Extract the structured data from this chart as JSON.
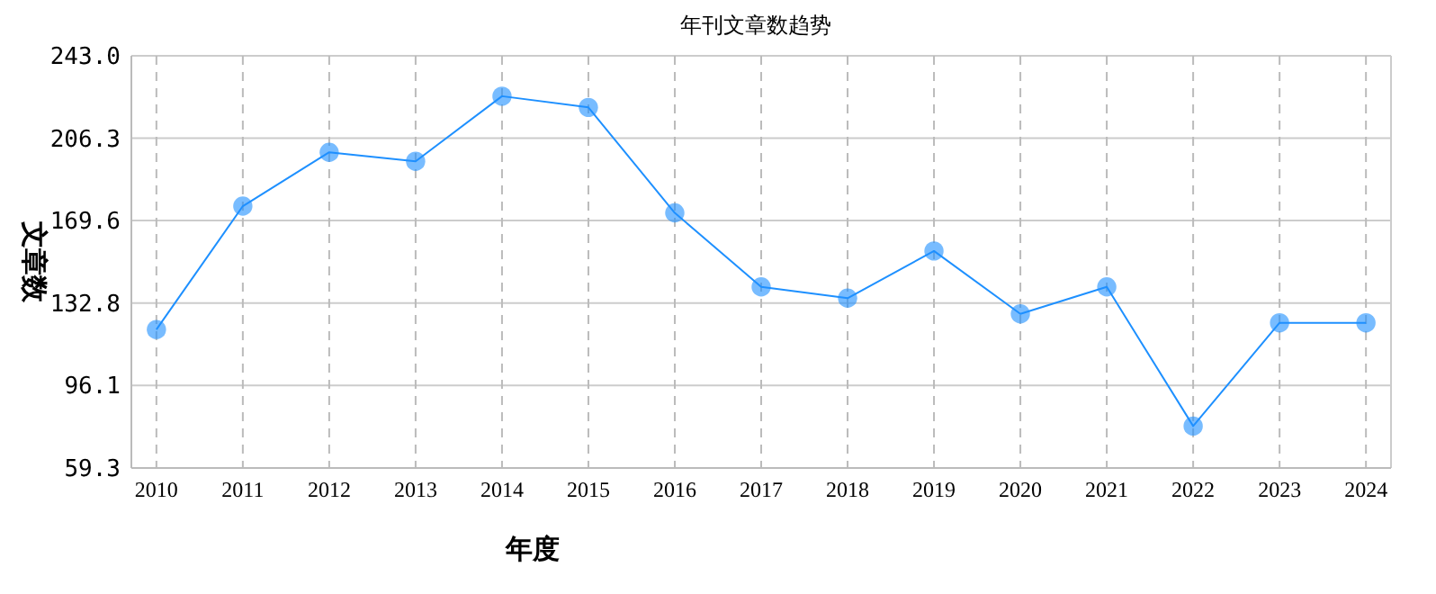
{
  "chart_data": {
    "type": "line",
    "title": "年刊文章数趋势",
    "xlabel": "年度",
    "ylabel": "文章数",
    "categories": [
      "2010",
      "2011",
      "2012",
      "2013",
      "2014",
      "2015",
      "2016",
      "2017",
      "2018",
      "2019",
      "2020",
      "2021",
      "2022",
      "2023",
      "2024"
    ],
    "series": [
      {
        "color": "#1e90ff",
        "values": [
          121,
          176,
          200,
          196,
          225,
          220,
          173,
          140,
          135,
          156,
          128,
          140,
          78,
          124,
          124
        ]
      }
    ],
    "ylim": [
      59.3,
      243.0
    ],
    "yticks": [
      {
        "value": 59.3,
        "label": "59.3"
      },
      {
        "value": 96.1,
        "label": "96.1"
      },
      {
        "value": 132.8,
        "label": "132.8"
      },
      {
        "value": 169.6,
        "label": "169.6"
      },
      {
        "value": 206.3,
        "label": "206.3"
      },
      {
        "value": 243.0,
        "label": "243.0"
      }
    ],
    "grid": true,
    "marker": "circle"
  }
}
